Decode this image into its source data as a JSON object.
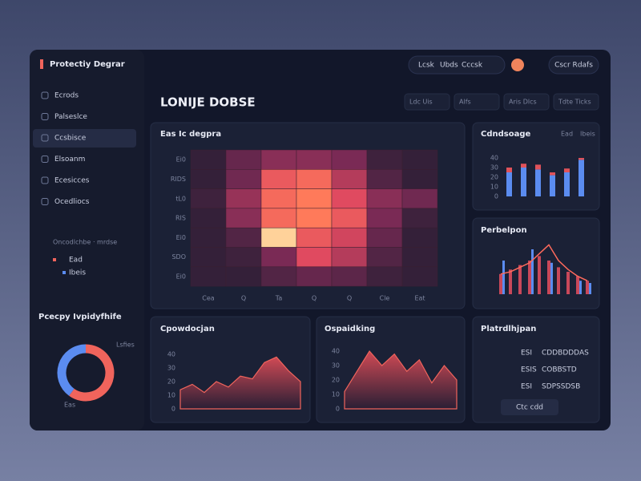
{
  "header": {
    "title": "Protectiy Degrar",
    "nav": [
      "Lcsk",
      "Ubds",
      "Cccsk"
    ],
    "user": "Cscr Rdafs"
  },
  "page_title": "LONIJE DOBSE",
  "sidebar": {
    "items": [
      "Ecrods",
      "Palseslce",
      "Ccsbisce",
      "Elsoanm",
      "Ecesicces",
      "Ocedliocs"
    ],
    "section": "Oncodlchbe · mrdse",
    "legend": [
      "Ead",
      "Ibeis"
    ]
  },
  "stats": [
    "Ldc Uis",
    "Alfs",
    "Aris Dlcs",
    "Tdte Ticks"
  ],
  "heatmap": {
    "title": "Eas Ic degpra",
    "row_labels": [
      "Ei0",
      "RIDS",
      "tL0",
      "RIS",
      "Ei0",
      "SDO",
      "Ei0"
    ],
    "col_labels": [
      "Cea",
      "Q",
      "Ta",
      "Q",
      "Q",
      "Cle",
      "Eat"
    ],
    "values": [
      [
        5,
        30,
        45,
        45,
        40,
        10,
        5
      ],
      [
        5,
        35,
        80,
        85,
        60,
        20,
        5
      ],
      [
        10,
        50,
        85,
        90,
        75,
        45,
        35
      ],
      [
        5,
        45,
        85,
        90,
        80,
        40,
        10
      ],
      [
        5,
        20,
        100,
        80,
        70,
        30,
        5
      ],
      [
        5,
        10,
        40,
        75,
        60,
        20,
        5
      ],
      [
        5,
        5,
        20,
        30,
        25,
        10,
        5
      ]
    ]
  },
  "bars": {
    "title": "Cdndsoage",
    "ylim": [
      0,
      50
    ],
    "yticks": [
      0,
      10,
      20,
      30,
      40
    ],
    "series": [
      {
        "name": "Ead",
        "color": "#5b8cf0",
        "values": [
          25,
          30,
          28,
          22,
          25,
          38
        ]
      },
      {
        "name": "Ibeis",
        "color": "#e0525a",
        "values": [
          5,
          4,
          5,
          3,
          4,
          2
        ]
      }
    ]
  },
  "combo": {
    "title": "Perbelpon",
    "ylim": [
      0,
      50
    ],
    "bars": [
      18,
      22,
      26,
      30,
      34,
      30,
      24,
      20,
      16,
      12
    ],
    "bars2": [
      30,
      null,
      null,
      40,
      null,
      28,
      null,
      null,
      12,
      10
    ],
    "line": [
      18,
      20,
      24,
      28,
      36,
      44,
      30,
      22,
      16,
      12
    ]
  },
  "area1": {
    "title": "Cpowdocjan",
    "ylim": [
      0,
      50
    ],
    "yticks": [
      0,
      10,
      20,
      30,
      40
    ],
    "values": [
      14,
      18,
      12,
      20,
      16,
      24,
      22,
      34,
      38,
      28,
      20
    ]
  },
  "area2": {
    "title": "Ospaidking",
    "ylim": [
      0,
      50
    ],
    "yticks": [
      0,
      10,
      20,
      30,
      40
    ],
    "values": [
      12,
      26,
      40,
      30,
      38,
      26,
      34,
      18,
      30,
      20
    ]
  },
  "list": {
    "title": "Platrdlhjpan",
    "rows": [
      [
        "ESI",
        "CDDBDDDAS"
      ],
      [
        "ESIS",
        "COBBSTD"
      ],
      [
        "ESI",
        "SDPSSDSB"
      ]
    ],
    "button": "Ctc cdd"
  },
  "donut": {
    "title": "Pcecpy Ivpidyfhife",
    "values": [
      60,
      40
    ],
    "colors": [
      "#f0645c",
      "#5b8cf0"
    ],
    "labels": [
      "Eas",
      "Lsfies"
    ]
  }
}
